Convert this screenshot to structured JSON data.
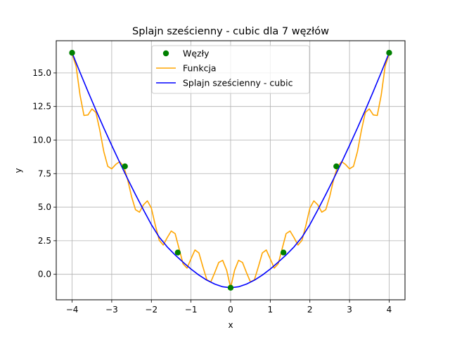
{
  "chart_data": {
    "type": "line",
    "title": "Splajn sześcienny - cubic dla 7 węzłów",
    "xlabel": "x",
    "ylabel": "y",
    "xlim": [
      -4.4,
      4.4
    ],
    "ylim": [
      -1.9,
      17.4
    ],
    "x_ticks": [
      -4,
      -3,
      -2,
      -1,
      0,
      1,
      2,
      3,
      4
    ],
    "x_tick_labels": [
      "−4",
      "−3",
      "−2",
      "−1",
      "0",
      "1",
      "2",
      "3",
      "4"
    ],
    "y_ticks": [
      0.0,
      2.5,
      5.0,
      7.5,
      10.0,
      12.5,
      15.0
    ],
    "y_tick_labels": [
      "0.0",
      "2.5",
      "5.0",
      "7.5",
      "10.0",
      "12.5",
      "15.0"
    ],
    "grid": true,
    "legend_position": "top-center",
    "series": [
      {
        "name": "Węzły",
        "kind": "scatter",
        "color": "#008000",
        "x": [
          -4.0,
          -2.667,
          -1.333,
          0.0,
          1.333,
          2.667,
          4.0
        ],
        "y": [
          16.5,
          8.04,
          1.62,
          -1.0,
          1.62,
          8.04,
          16.5
        ]
      },
      {
        "name": "Funkcja",
        "kind": "line",
        "color": "#ffa500",
        "x": [
          -4.0,
          -3.9,
          -3.8,
          -3.7,
          -3.6,
          -3.5,
          -3.4,
          -3.3,
          -3.2,
          -3.1,
          -3.0,
          -2.9,
          -2.8,
          -2.7,
          -2.6,
          -2.5,
          -2.4,
          -2.3,
          -2.2,
          -2.1,
          -2.0,
          -1.9,
          -1.8,
          -1.7,
          -1.6,
          -1.5,
          -1.4,
          -1.3,
          -1.2,
          -1.1,
          -1.0,
          -0.9,
          -0.8,
          -0.7,
          -0.6,
          -0.5,
          -0.4,
          -0.3,
          -0.2,
          -0.1,
          0.0,
          0.1,
          0.2,
          0.3,
          0.4,
          0.5,
          0.6,
          0.7,
          0.8,
          0.9,
          1.0,
          1.1,
          1.2,
          1.3,
          1.4,
          1.5,
          1.6,
          1.7,
          1.8,
          1.9,
          2.0,
          2.1,
          2.2,
          2.3,
          2.4,
          2.5,
          2.6,
          2.7,
          2.8,
          2.9,
          3.0,
          3.1,
          3.2,
          3.3,
          3.4,
          3.5,
          3.6,
          3.7,
          3.8,
          3.9,
          4.0
        ],
        "y": [
          16.4,
          15.52,
          13.35,
          11.83,
          11.87,
          12.32,
          12.06,
          10.72,
          9.14,
          8.04,
          7.86,
          8.18,
          8.39,
          8.05,
          7.07,
          5.79,
          4.81,
          4.63,
          5.17,
          5.47,
          4.93,
          3.65,
          2.53,
          2.18,
          2.73,
          3.22,
          3.03,
          1.9,
          0.78,
          0.46,
          1.15,
          1.81,
          1.59,
          0.56,
          -0.41,
          -0.57,
          0.13,
          0.88,
          1.04,
          0.3,
          -1.0,
          0.3,
          1.04,
          0.88,
          0.13,
          -0.57,
          -0.41,
          0.56,
          1.59,
          1.81,
          1.15,
          0.46,
          0.78,
          1.9,
          3.03,
          3.22,
          2.73,
          2.18,
          2.53,
          3.65,
          4.93,
          5.47,
          5.17,
          4.63,
          4.81,
          5.79,
          7.07,
          8.05,
          8.39,
          8.18,
          7.86,
          8.04,
          9.14,
          10.72,
          12.06,
          12.32,
          11.87,
          11.83,
          13.35,
          15.52,
          16.4
        ]
      },
      {
        "name": "Splajn sześcienny - cubic",
        "kind": "line",
        "color": "#0000ff",
        "x": [
          -4.0,
          -3.8,
          -3.6,
          -3.4,
          -3.2,
          -3.0,
          -2.8,
          -2.6,
          -2.4,
          -2.2,
          -2.0,
          -1.8,
          -1.6,
          -1.4,
          -1.2,
          -1.0,
          -0.8,
          -0.6,
          -0.4,
          -0.2,
          0.0,
          0.2,
          0.4,
          0.6,
          0.8,
          1.0,
          1.2,
          1.4,
          1.6,
          1.8,
          2.0,
          2.2,
          2.4,
          2.6,
          2.8,
          3.0,
          3.2,
          3.4,
          3.6,
          3.8,
          4.0
        ],
        "y": [
          16.5,
          15.04,
          13.62,
          12.24,
          10.9,
          9.6,
          8.34,
          7.12,
          5.94,
          4.8,
          3.7,
          2.76,
          2.04,
          1.44,
          0.9,
          0.39,
          -0.06,
          -0.44,
          -0.73,
          -0.93,
          -1.0,
          -0.93,
          -0.73,
          -0.44,
          -0.06,
          0.39,
          0.9,
          1.44,
          2.04,
          2.76,
          3.7,
          4.8,
          5.94,
          7.12,
          8.34,
          9.6,
          10.9,
          12.24,
          13.62,
          15.04,
          16.5
        ]
      }
    ]
  }
}
